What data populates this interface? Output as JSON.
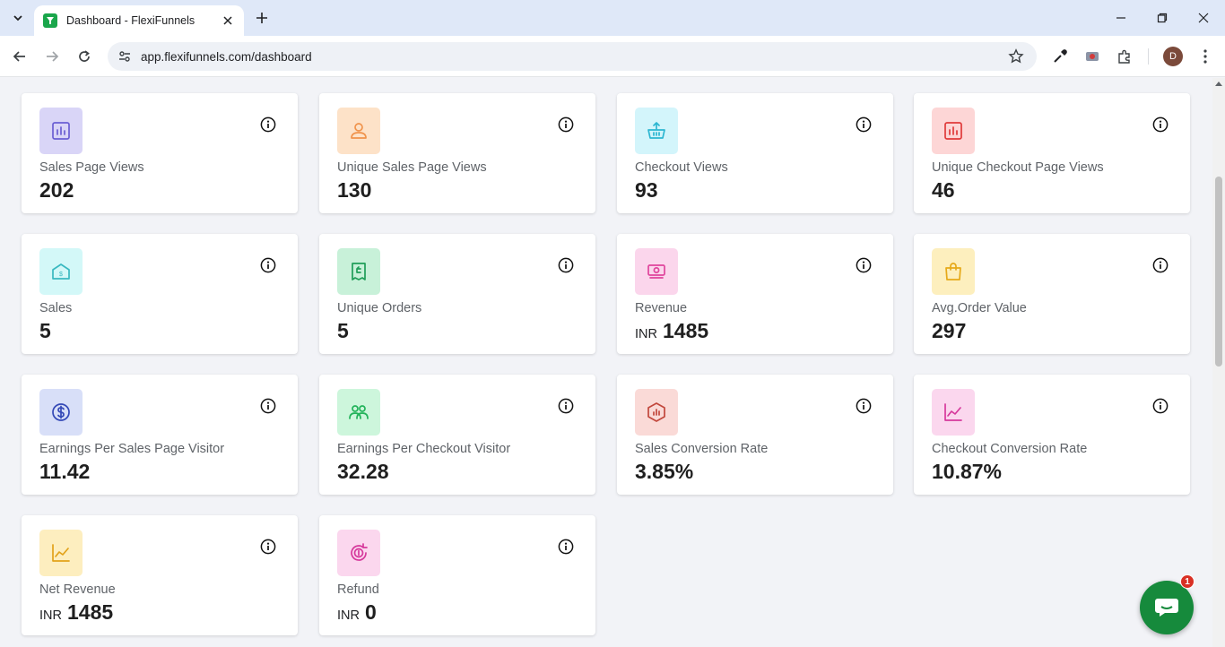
{
  "browser": {
    "tab_title": "Dashboard - FlexiFunnels",
    "url": "app.flexifunnels.com/dashboard",
    "profile_initial": "D"
  },
  "cards": [
    {
      "label": "Sales Page Views",
      "prefix": "",
      "value": "202",
      "icon": "bar-chart-icon",
      "bg": "#d9d5f7",
      "fg": "#6b5fd3"
    },
    {
      "label": "Unique Sales Page Views",
      "prefix": "",
      "value": "130",
      "icon": "user-icon",
      "bg": "#fde2c8",
      "fg": "#f0934b"
    },
    {
      "label": "Checkout Views",
      "prefix": "",
      "value": "93",
      "icon": "basket-icon",
      "bg": "#d3f5fb",
      "fg": "#2cb6d1"
    },
    {
      "label": "Unique Checkout Page Views",
      "prefix": "",
      "value": "46",
      "icon": "bar-chart-icon",
      "bg": "#fdd6d6",
      "fg": "#e03a3a"
    },
    {
      "label": "Sales",
      "prefix": "",
      "value": "5",
      "icon": "store-icon",
      "bg": "#d3f8f8",
      "fg": "#39b9c0"
    },
    {
      "label": "Unique Orders",
      "prefix": "",
      "value": "5",
      "icon": "receipt-icon",
      "bg": "#c8f1d9",
      "fg": "#1f9e58"
    },
    {
      "label": "Revenue",
      "prefix": "INR",
      "value": "1485",
      "icon": "money-icon",
      "bg": "#fbd6ec",
      "fg": "#e0449c"
    },
    {
      "label": "Avg.Order Value",
      "prefix": "",
      "value": "297",
      "icon": "shopping-bag-icon",
      "bg": "#fdefbe",
      "fg": "#e6a919"
    },
    {
      "label": "Earnings Per Sales Page Visitor",
      "prefix": "",
      "value": "11.42",
      "icon": "dollar-icon",
      "bg": "#d8dff8",
      "fg": "#3449b7"
    },
    {
      "label": "Earnings Per Checkout Visitor",
      "prefix": "",
      "value": "32.28",
      "icon": "users-icon",
      "bg": "#cdf6dc",
      "fg": "#22b35a"
    },
    {
      "label": "Sales Conversion Rate",
      "prefix": "",
      "value": "3.85%",
      "icon": "badge-chart-icon",
      "bg": "#fadad7",
      "fg": "#c2473c"
    },
    {
      "label": "Checkout Conversion Rate",
      "prefix": "",
      "value": "10.87%",
      "icon": "line-chart-icon",
      "bg": "#fbd7ee",
      "fg": "#d6399c"
    },
    {
      "label": "Net Revenue",
      "prefix": "INR",
      "value": "1485",
      "icon": "line-chart-icon",
      "bg": "#fdeebf",
      "fg": "#e2a21a"
    },
    {
      "label": "Refund",
      "prefix": "INR",
      "value": "0",
      "icon": "refund-icon",
      "bg": "#fbd7ee",
      "fg": "#d6399c"
    }
  ],
  "chat": {
    "badge_count": "1"
  }
}
